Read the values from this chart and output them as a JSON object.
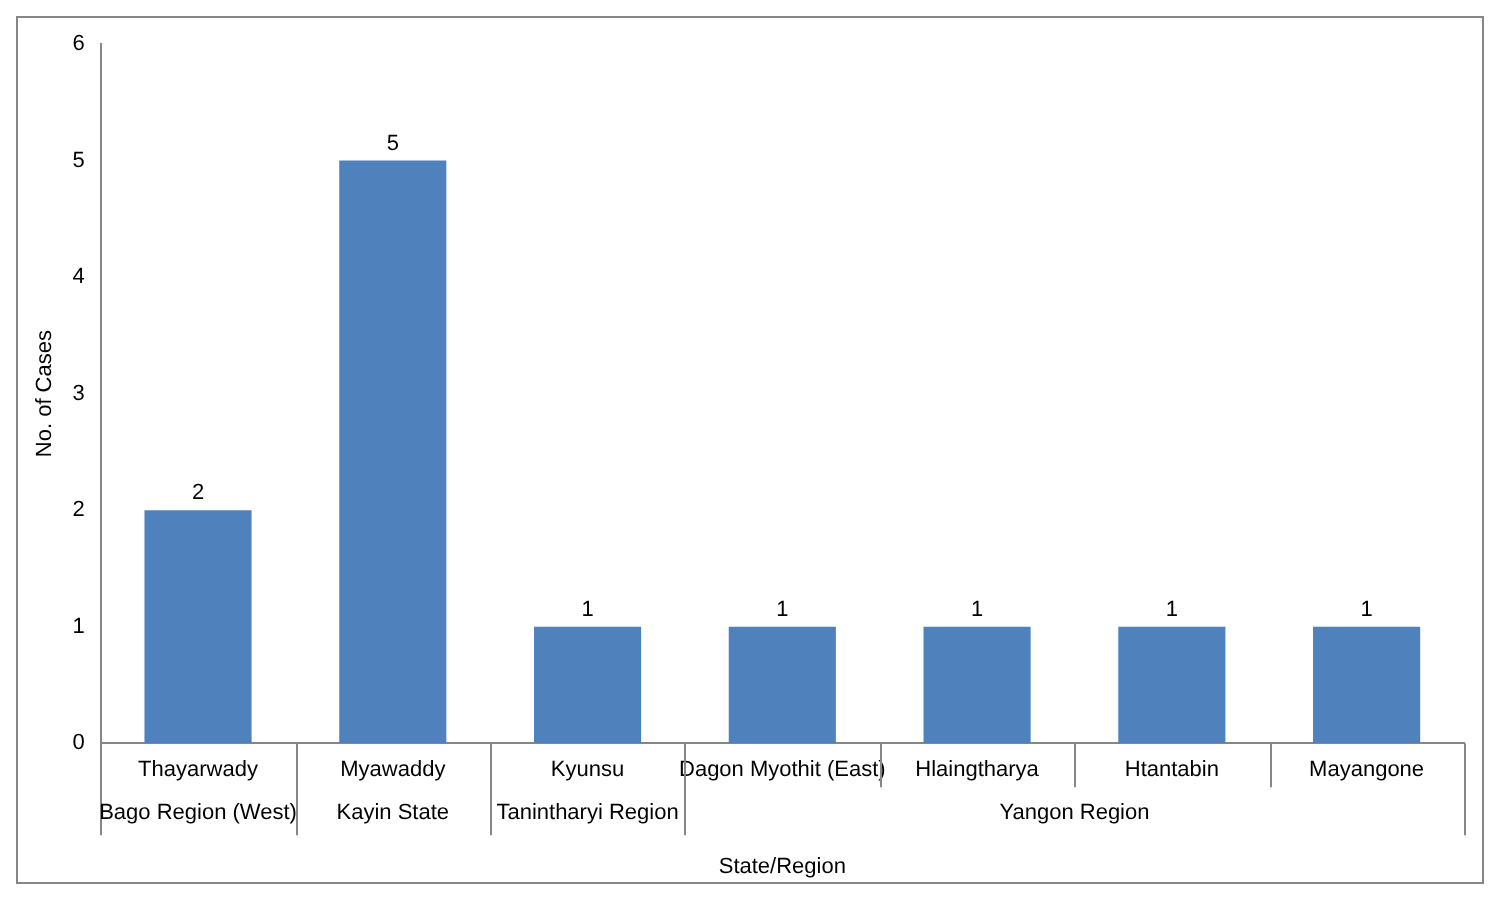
{
  "chart_data": {
    "type": "bar",
    "xlabel": "State/Region",
    "ylabel": "No. of Cases",
    "categories": [
      "Thayarwady",
      "Myawaddy",
      "Kyunsu",
      "Dagon Myothit (East)",
      "Hlaingtharya",
      "Htantabin",
      "Mayangone"
    ],
    "values": [
      2,
      5,
      1,
      1,
      1,
      1,
      1
    ],
    "color": "#4f81bd",
    "ylim": [
      0,
      6
    ],
    "yticks": [
      0,
      1,
      2,
      3,
      4,
      5,
      6
    ],
    "grid": false,
    "legend": false,
    "data_labels": true,
    "annotations": [
      "Bago Region (West)",
      "Kayin State",
      "Tanintharyi Region",
      "Yangon Region"
    ]
  }
}
